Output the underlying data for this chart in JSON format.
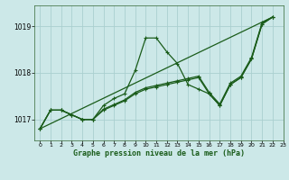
{
  "title": "Graphe pression niveau de la mer (hPa)",
  "bg_color": "#cce8e8",
  "grid_color": "#aacfcf",
  "line_color": "#1a5c1a",
  "xlim": [
    -0.5,
    23
  ],
  "ylim": [
    1016.55,
    1019.45
  ],
  "yticks": [
    1017,
    1018,
    1019
  ],
  "xticks": [
    0,
    1,
    2,
    3,
    4,
    5,
    6,
    7,
    8,
    9,
    10,
    11,
    12,
    13,
    14,
    15,
    16,
    17,
    18,
    19,
    20,
    21,
    22,
    23
  ],
  "line1_x": [
    0,
    1,
    2,
    3,
    4,
    5,
    6,
    7,
    8,
    9,
    10,
    11,
    12,
    13,
    14,
    15,
    16,
    17,
    18,
    19,
    20,
    21,
    22
  ],
  "line1_y": [
    1016.8,
    1017.2,
    1017.2,
    1017.1,
    1017.0,
    1017.0,
    1017.3,
    1017.45,
    1017.55,
    1018.05,
    1018.75,
    1018.75,
    1018.45,
    1018.2,
    1017.75,
    1017.65,
    1017.55,
    1017.3,
    1017.75,
    1017.9,
    1018.3,
    1019.05,
    1019.2
  ],
  "line2_x": [
    0,
    1,
    2,
    3,
    4,
    5,
    6,
    7,
    8,
    9,
    10,
    11,
    12,
    13,
    14,
    15,
    16,
    17,
    18,
    19,
    20,
    21,
    22
  ],
  "line2_y": [
    1016.8,
    1017.2,
    1017.2,
    1017.1,
    1017.0,
    1017.0,
    1017.2,
    1017.3,
    1017.4,
    1017.55,
    1017.65,
    1017.7,
    1017.75,
    1017.8,
    1017.85,
    1017.9,
    1017.55,
    1017.3,
    1017.75,
    1017.9,
    1018.3,
    1019.05,
    1019.2
  ],
  "line3_x": [
    0,
    1,
    2,
    3,
    4,
    5,
    6,
    7,
    8,
    9,
    10,
    11,
    12,
    13,
    14,
    15,
    16,
    17,
    18,
    19,
    20,
    21,
    22
  ],
  "line3_y": [
    1016.8,
    1017.2,
    1017.2,
    1017.1,
    1017.0,
    1017.0,
    1017.22,
    1017.32,
    1017.42,
    1017.58,
    1017.68,
    1017.73,
    1017.78,
    1017.83,
    1017.88,
    1017.93,
    1017.58,
    1017.33,
    1017.78,
    1017.93,
    1018.33,
    1019.08,
    1019.2
  ],
  "line4_x": [
    0,
    22
  ],
  "line4_y": [
    1016.8,
    1019.2
  ]
}
